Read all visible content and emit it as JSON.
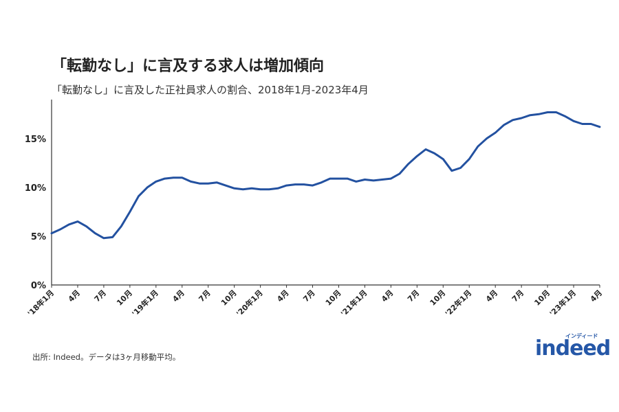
{
  "title": "「転勤なし」に言及する求人は増加傾向",
  "subtitle": "「転勤なし」に言及した正社員求人の割合、2018年1月-2023年4月",
  "source": "出所: Indeed。データは3ヶ月移動平均。",
  "logo": {
    "wordmark": "indeed",
    "kana": "インディード"
  },
  "colors": {
    "line": "#2351a0",
    "axis": "#333333",
    "logo": "#2557a7"
  },
  "chart_data": {
    "type": "line",
    "y_tick_labels": [
      "0%",
      "5%",
      "10%",
      "15%"
    ],
    "y_tick_values": [
      0,
      5,
      10,
      15
    ],
    "ylim": [
      0,
      19
    ],
    "grid": false,
    "x_tick_labels": [
      "'18年1月",
      "4月",
      "7月",
      "10月",
      "'19年1月",
      "4月",
      "7月",
      "10月",
      "'20年1月",
      "4月",
      "7月",
      "10月",
      "'21年1月",
      "4月",
      "7月",
      "10月",
      "'22年1月",
      "4月",
      "7月",
      "10月",
      "'23年1月",
      "4月"
    ],
    "x_tick_month_index": [
      0,
      3,
      6,
      9,
      12,
      15,
      18,
      21,
      24,
      27,
      30,
      33,
      36,
      39,
      42,
      45,
      48,
      51,
      54,
      57,
      60,
      63
    ],
    "series": [
      {
        "values": [
          5.3,
          5.7,
          6.2,
          6.5,
          6.0,
          5.3,
          4.8,
          4.9,
          6.0,
          7.5,
          9.1,
          10.0,
          10.6,
          10.9,
          11.0,
          11.0,
          10.6,
          10.4,
          10.4,
          10.5,
          10.2,
          9.9,
          9.8,
          9.9,
          9.8,
          9.8,
          9.9,
          10.2,
          10.3,
          10.3,
          10.2,
          10.5,
          10.9,
          10.9,
          10.9,
          10.6,
          10.8,
          10.7,
          10.8,
          10.9,
          11.4,
          12.4,
          13.2,
          13.9,
          13.5,
          12.9,
          11.7,
          12.0,
          12.9,
          14.2,
          15.0,
          15.6,
          16.4,
          16.9,
          17.1,
          17.4,
          17.5,
          17.7,
          17.7,
          17.3,
          16.8,
          16.5,
          16.5,
          16.2
        ]
      }
    ]
  }
}
